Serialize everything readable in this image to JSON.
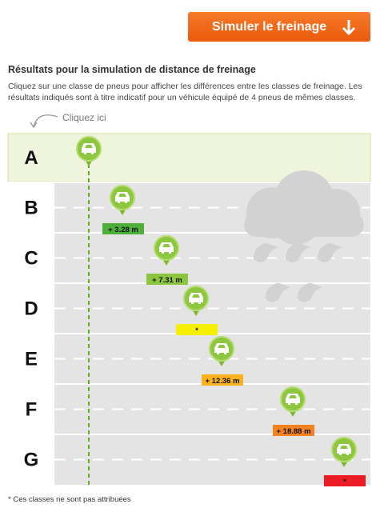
{
  "header": {
    "button": "Simuler le freinage"
  },
  "results": {
    "title": "Résultats pour la simulation de distance de freinage",
    "description": "Cliquez sur une classe de pneus pour afficher les différences entre les classes de freinage. Les résultats indiqués sont à titre indicatif pour un véhicule équipé de 4 pneus de mêmes classes.",
    "hint": "Cliquez ici",
    "rows": [
      {
        "class": "A"
      },
      {
        "class": "B",
        "label": "+ 3.28 m",
        "color": "#4caf3a"
      },
      {
        "class": "C",
        "label": "+ 7.31 m",
        "color": "#8cc63f"
      },
      {
        "class": "D",
        "label": "*",
        "color": "#f5f000"
      },
      {
        "class": "E",
        "label": "+ 12.36 m",
        "color": "#f9b21d"
      },
      {
        "class": "F",
        "label": "+ 18.88 m",
        "color": "#f58220"
      },
      {
        "class": "G",
        "label": "*",
        "color": "#ed1c24"
      }
    ],
    "footnote": "* Ces classes ne sont pas attribuées"
  }
}
